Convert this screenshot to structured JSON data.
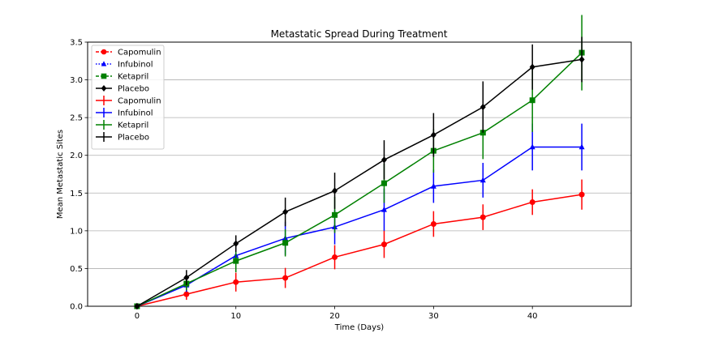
{
  "chart_data": {
    "type": "line",
    "title": "Metastatic Spread During Treatment",
    "xlabel": "Time (Days)",
    "ylabel": "Mean Metastatic Sites",
    "xlim": [
      -5,
      50
    ],
    "ylim": [
      0,
      3.5
    ],
    "xticks": [
      0,
      10,
      20,
      30,
      40
    ],
    "yticks": [
      0.0,
      0.5,
      1.0,
      1.5,
      2.0,
      2.5,
      3.0,
      3.5
    ],
    "ytick_labels": [
      "0.0",
      "0.5",
      "1.0",
      "1.5",
      "2.0",
      "2.5",
      "3.0",
      "3.5"
    ],
    "grid": "y",
    "legend_position": "top-left",
    "x": [
      0,
      5,
      10,
      15,
      20,
      25,
      30,
      35,
      40,
      45
    ],
    "series": [
      {
        "name": "Capomulin",
        "color": "#ff0000",
        "marker": "circle",
        "values": [
          0.0,
          0.16,
          0.32,
          0.375,
          0.65,
          0.82,
          1.09,
          1.18,
          1.38,
          1.48
        ],
        "errors": [
          0.0,
          0.075,
          0.125,
          0.133,
          0.16,
          0.18,
          0.17,
          0.17,
          0.17,
          0.2
        ]
      },
      {
        "name": "Infubinol",
        "color": "#0000ff",
        "marker": "triangle",
        "values": [
          0.0,
          0.28,
          0.67,
          0.9,
          1.05,
          1.28,
          1.59,
          1.67,
          2.11,
          2.11
        ],
        "errors": [
          0.0,
          0.09,
          0.16,
          0.22,
          0.23,
          0.28,
          0.22,
          0.23,
          0.31,
          0.31
        ]
      },
      {
        "name": "Ketapril",
        "color": "#008000",
        "marker": "square",
        "values": [
          0.0,
          0.3,
          0.6,
          0.84,
          1.21,
          1.63,
          2.06,
          2.3,
          2.73,
          3.36
        ],
        "errors": [
          0.0,
          0.09,
          0.15,
          0.18,
          0.24,
          0.26,
          0.29,
          0.35,
          0.42,
          0.5
        ]
      },
      {
        "name": "Placebo",
        "color": "#000000",
        "marker": "diamond",
        "values": [
          0.0,
          0.38,
          0.83,
          1.25,
          1.53,
          1.94,
          2.27,
          2.64,
          3.17,
          3.27
        ],
        "errors": [
          0.0,
          0.1,
          0.11,
          0.19,
          0.24,
          0.26,
          0.29,
          0.34,
          0.3,
          0.3
        ]
      }
    ],
    "legend_entries": [
      {
        "label": "Capomulin",
        "color": "#ff0000",
        "marker": "circle",
        "style": "dashed"
      },
      {
        "label": "Infubinol",
        "color": "#0000ff",
        "marker": "triangle",
        "style": "dotted"
      },
      {
        "label": "Ketapril",
        "color": "#008000",
        "marker": "square",
        "style": "dashed"
      },
      {
        "label": "Placebo",
        "color": "#000000",
        "marker": "diamond",
        "style": "solid"
      },
      {
        "label": "Capomulin",
        "color": "#ff0000",
        "marker": "errorbar",
        "style": "solid"
      },
      {
        "label": "Infubinol",
        "color": "#0000ff",
        "marker": "errorbar",
        "style": "solid"
      },
      {
        "label": "Ketapril",
        "color": "#008000",
        "marker": "errorbar",
        "style": "solid"
      },
      {
        "label": "Placebo",
        "color": "#000000",
        "marker": "errorbar",
        "style": "solid"
      }
    ]
  }
}
